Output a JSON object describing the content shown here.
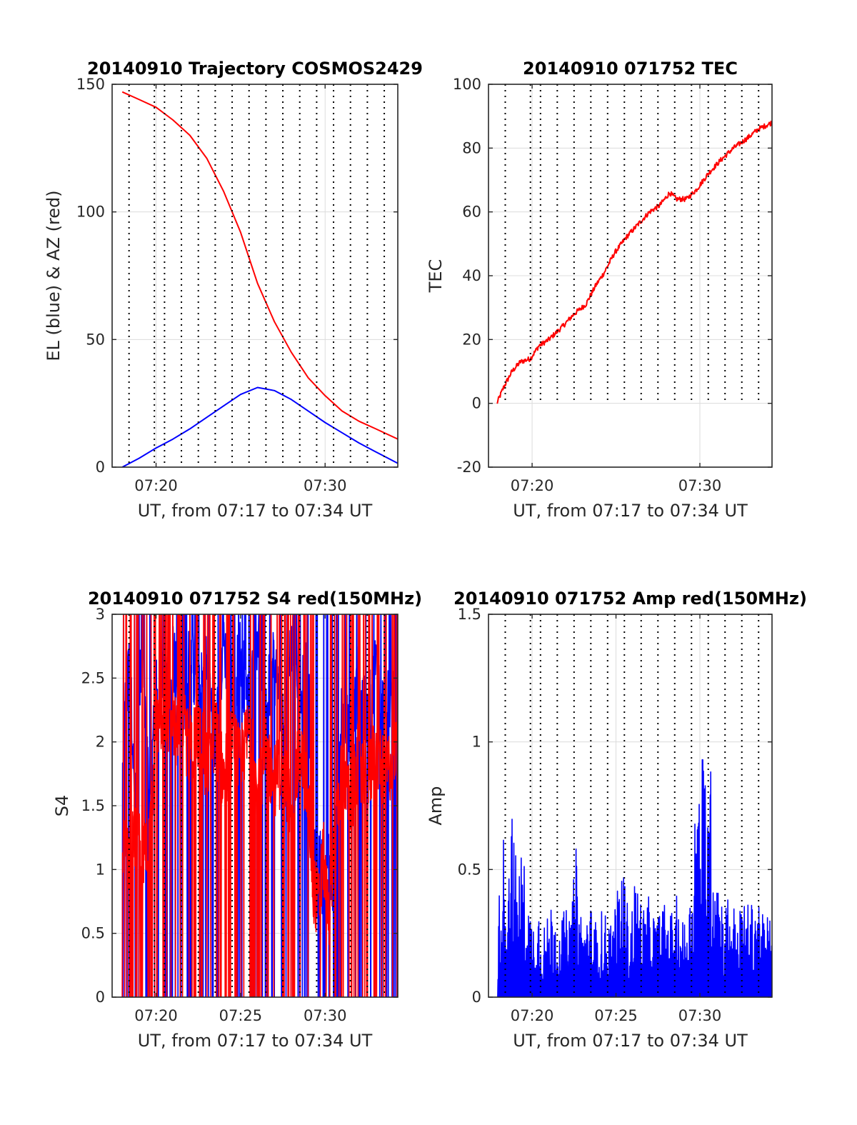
{
  "chart_data": [
    {
      "id": "trajectory",
      "type": "line",
      "title": "20140910 Trajectory COSMOS2429",
      "xlabel": "UT, from 07:17 to 07:34 UT",
      "ylabel": "EL (blue) & AZ (red)",
      "xlim": [
        437.4,
        454.3
      ],
      "ylim": [
        0,
        150
      ],
      "xticks": [
        440,
        450
      ],
      "xtick_labels": [
        "07:20",
        "07:30"
      ],
      "yticks": [
        0,
        50,
        100,
        150
      ],
      "ytick_labels": [
        "0",
        "50",
        "100",
        "150"
      ],
      "grid": true,
      "marker_times": [
        438.4,
        439.9,
        440.5,
        441.5,
        442.5,
        443.5,
        444.5,
        445.5,
        446.5,
        447.5,
        448.5,
        449.5,
        450.5,
        451.5,
        452.5,
        453.5
      ],
      "series": [
        {
          "color": "#ff0000",
          "x": [
            438.0,
            439.0,
            440.0,
            441.0,
            442.0,
            443.0,
            444.0,
            445.0,
            446.0,
            447.0,
            448.0,
            449.0,
            450.0,
            451.0,
            452.0,
            453.0,
            454.3
          ],
          "values": [
            147,
            144,
            141,
            136,
            130,
            121,
            108,
            92,
            72,
            57,
            45,
            35,
            28,
            22,
            18,
            15,
            11
          ]
        },
        {
          "color": "#0000ff",
          "x": [
            438.0,
            439.0,
            440.0,
            441.0,
            442.0,
            443.0,
            444.0,
            445.0,
            446.0,
            447.0,
            448.0,
            449.0,
            450.0,
            451.0,
            452.0,
            453.0,
            454.3
          ],
          "values": [
            0,
            3.5,
            7.5,
            11,
            15,
            19.5,
            24,
            28.5,
            31.2,
            30,
            26.5,
            22,
            17.5,
            13.5,
            9.5,
            6,
            1.5
          ]
        }
      ]
    },
    {
      "id": "tec",
      "type": "line",
      "title": "20140910 071752 TEC",
      "xlabel": "UT, from 07:17 to 07:34 UT",
      "ylabel": "TEC",
      "xlim": [
        437.4,
        454.3
      ],
      "ylim": [
        -20,
        100
      ],
      "xticks": [
        440,
        450
      ],
      "xtick_labels": [
        "07:20",
        "07:30"
      ],
      "yticks": [
        -20,
        0,
        20,
        40,
        60,
        80,
        100
      ],
      "ytick_labels": [
        "-20",
        "0",
        "20",
        "40",
        "60",
        "80",
        "100"
      ],
      "grid": true,
      "marker_times": [
        438.4,
        439.9,
        440.5,
        441.5,
        442.5,
        443.5,
        444.5,
        445.5,
        446.5,
        447.5,
        448.5,
        449.5,
        450.5,
        451.5,
        452.5,
        453.5
      ],
      "series": [
        {
          "color": "#ff0000",
          "x": [
            437.9,
            438.3,
            438.8,
            439.3,
            439.9,
            440.4,
            441.0,
            441.8,
            442.5,
            443.2,
            443.8,
            444.3,
            444.9,
            445.6,
            446.3,
            447.0,
            447.6,
            448.2,
            448.6,
            449.2,
            449.8,
            450.5,
            451.2,
            452.0,
            452.8,
            453.5,
            454.3
          ],
          "values": [
            0,
            5,
            10,
            13,
            14,
            18,
            20,
            24,
            28,
            31,
            37,
            41,
            47,
            52,
            56,
            60,
            62,
            66,
            64,
            64,
            67,
            72,
            76,
            80,
            83,
            86,
            88
          ]
        }
      ]
    },
    {
      "id": "s4",
      "type": "line",
      "title": "20140910 071752 S4 red(150MHz)",
      "xlabel": "UT, from 07:17 to 07:34 UT",
      "ylabel": "S4",
      "xlim": [
        437.4,
        454.3
      ],
      "ylim": [
        0,
        3
      ],
      "xticks": [
        440,
        445,
        450
      ],
      "xtick_labels": [
        "07:20",
        "07:25",
        "07:30"
      ],
      "yticks": [
        0,
        0.5,
        1,
        1.5,
        2,
        2.5,
        3
      ],
      "ytick_labels": [
        "0",
        "0.5",
        "1",
        "1.5",
        "2",
        "2.5",
        "3"
      ],
      "grid": true,
      "marker_times": [
        438.4,
        439.9,
        440.5,
        441.5,
        442.5,
        443.5,
        444.5,
        445.5,
        446.5,
        447.5,
        448.5,
        449.5,
        450.5,
        451.5,
        452.5,
        453.5
      ],
      "series": [
        {
          "color": "#0000ff",
          "x": [
            438.0,
            438.4,
            438.8,
            439.2,
            439.6,
            440.0,
            440.5,
            441.0,
            441.5,
            442.0,
            442.5,
            443.0,
            443.5,
            444.0,
            444.5,
            445.0,
            445.5,
            446.0,
            446.5,
            447.0,
            447.5,
            448.0,
            448.5,
            449.0,
            449.3,
            449.6,
            449.9,
            450.2,
            450.5,
            451.0,
            451.5,
            452.0,
            452.5,
            453.0,
            453.5,
            454.3
          ],
          "values": [
            1.9,
            2.6,
            1.5,
            2.9,
            1.4,
            2.4,
            2.5,
            2.7,
            2.2,
            2.8,
            2.3,
            2.6,
            2.0,
            2.8,
            2.4,
            2.7,
            2.2,
            2.9,
            2.3,
            2.6,
            2.1,
            2.8,
            2.4,
            2.6,
            1.0,
            1.1,
            0.9,
            1.0,
            0.95,
            2.3,
            2.0,
            2.5,
            2.1,
            2.6,
            2.2,
            2.5
          ]
        },
        {
          "color": "#ff0000",
          "x": [
            438.0,
            438.4,
            438.8,
            439.2,
            439.6,
            440.0,
            440.5,
            441.0,
            441.5,
            442.0,
            442.5,
            443.0,
            443.5,
            444.0,
            444.5,
            445.0,
            445.5,
            446.0,
            446.5,
            447.0,
            447.5,
            448.0,
            448.5,
            449.0,
            449.3,
            449.6,
            449.9,
            450.2,
            450.5,
            451.0,
            451.5,
            452.0,
            452.5,
            453.0,
            453.5,
            454.3
          ],
          "values": [
            1.2,
            1.0,
            1.3,
            1.05,
            1.2,
            2.1,
            2.3,
            2.0,
            2.2,
            1.9,
            2.1,
            1.8,
            2.1,
            1.7,
            2.0,
            1.8,
            2.1,
            1.6,
            1.9,
            1.7,
            1.8,
            1.5,
            1.9,
            1.6,
            0.9,
            0.7,
            1.1,
            0.6,
            1.2,
            1.8,
            1.5,
            1.9,
            1.6,
            2.0,
            1.7,
            2.0
          ]
        }
      ]
    },
    {
      "id": "amp",
      "type": "line",
      "title": "20140910 071752 Amp red(150MHz)",
      "xlabel": "UT, from 07:17 to 07:34 UT",
      "ylabel": "Amp",
      "xlim": [
        437.4,
        454.3
      ],
      "ylim": [
        0,
        1.5
      ],
      "xticks": [
        440,
        445,
        450
      ],
      "xtick_labels": [
        "07:20",
        "07:25",
        "07:30"
      ],
      "yticks": [
        0,
        0.5,
        1,
        1.5
      ],
      "ytick_labels": [
        "0",
        "0.5",
        "1",
        "1.5"
      ],
      "grid": true,
      "marker_times": [
        438.4,
        439.9,
        440.5,
        441.5,
        442.5,
        443.5,
        444.5,
        445.5,
        446.5,
        447.5,
        448.5,
        449.5,
        450.5,
        451.5,
        452.5,
        453.5
      ],
      "series": [
        {
          "color": "#0000ff",
          "x": [
            437.95,
            438.2,
            438.5,
            438.8,
            439.1,
            439.4,
            439.7,
            440.0,
            440.4,
            440.8,
            441.2,
            441.6,
            442.0,
            442.3,
            442.6,
            443.0,
            443.4,
            443.8,
            444.2,
            444.6,
            445.0,
            445.4,
            445.8,
            446.2,
            446.6,
            447.0,
            447.4,
            447.8,
            448.2,
            448.6,
            449.0,
            449.4,
            449.7,
            450.0,
            450.3,
            450.6,
            451.0,
            451.4,
            451.8,
            452.2,
            452.6,
            453.0,
            453.4,
            453.8,
            454.3
          ],
          "values": [
            0.25,
            0.7,
            0.55,
            0.75,
            0.5,
            0.6,
            0.45,
            0.3,
            0.38,
            0.28,
            0.4,
            0.3,
            0.35,
            0.3,
            0.6,
            0.28,
            0.38,
            0.3,
            0.35,
            0.3,
            0.38,
            0.55,
            0.3,
            0.5,
            0.35,
            0.4,
            0.3,
            0.38,
            0.32,
            0.4,
            0.3,
            0.38,
            0.85,
            0.9,
            1.05,
            0.95,
            0.6,
            0.35,
            0.45,
            0.3,
            0.4,
            0.35,
            0.45,
            0.3,
            0.35
          ]
        }
      ]
    }
  ]
}
